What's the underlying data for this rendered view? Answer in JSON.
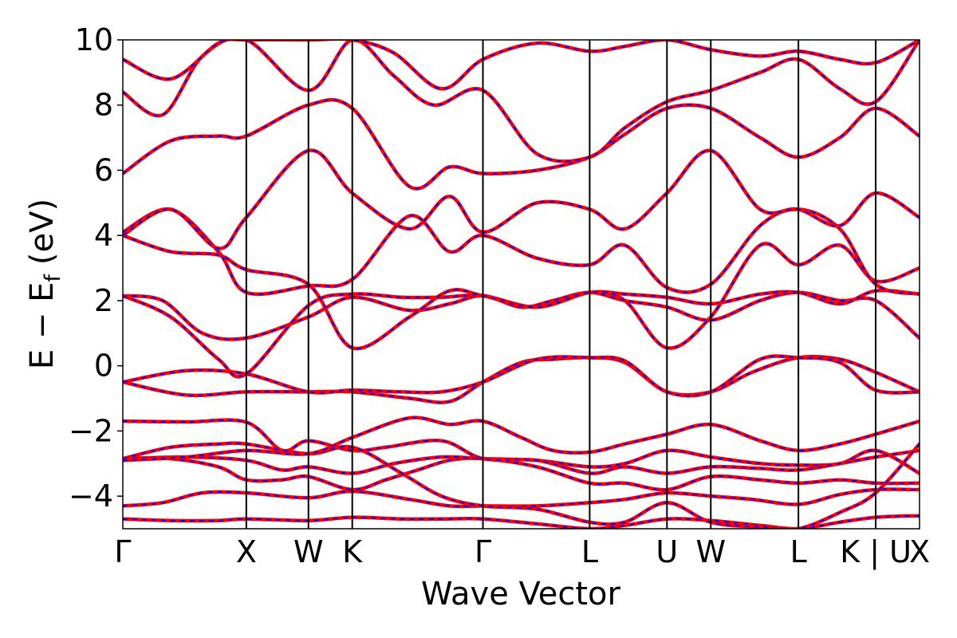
{
  "chart_data": {
    "type": "line",
    "title": "",
    "xlabel": "Wave Vector",
    "ylabel": "E − E",
    "ylabel_subscript": "f",
    "ylabel_unit": "(eV)",
    "ylim": [
      -5,
      10
    ],
    "yticks": [
      {
        "value": 10,
        "label": "10"
      },
      {
        "value": 8,
        "label": "8"
      },
      {
        "value": 6,
        "label": "6"
      },
      {
        "value": 4,
        "label": "4"
      },
      {
        "value": 2,
        "label": "2"
      },
      {
        "value": 0,
        "label": "0"
      },
      {
        "value": -2,
        "label": "−2"
      },
      {
        "value": -4,
        "label": "−4"
      }
    ],
    "xlim": [
      0,
      10
    ],
    "kpoints": [
      {
        "label": "Γ",
        "x": 0.0
      },
      {
        "label": "X",
        "x": 1.55
      },
      {
        "label": "W",
        "x": 2.33
      },
      {
        "label": "K",
        "x": 2.88
      },
      {
        "label": "Γ",
        "x": 4.52
      },
      {
        "label": "L",
        "x": 5.86
      },
      {
        "label": "U",
        "x": 6.83
      },
      {
        "label": "W",
        "x": 7.38
      },
      {
        "label": "L",
        "x": 8.48
      },
      {
        "label": "K | U",
        "x": 9.45
      },
      {
        "label": "X",
        "x": 10.0
      }
    ],
    "series_style": {
      "outer_color": "#ff0000",
      "inner_color": "#0000ff",
      "inner_dash": "dashed"
    },
    "series": [
      {
        "x": [
          0,
          0.6,
          1.2,
          1.55,
          2.33,
          2.88,
          3.5,
          4.0,
          4.52,
          5.2,
          5.86,
          6.3,
          6.83,
          7.38,
          8.0,
          8.48,
          9.0,
          9.45,
          10.0
        ],
        "y": [
          -4.7,
          -4.75,
          -4.75,
          -4.7,
          -4.75,
          -4.65,
          -4.7,
          -4.7,
          -4.7,
          -4.85,
          -5.0,
          -4.9,
          -4.7,
          -4.75,
          -4.9,
          -5.0,
          -4.8,
          -4.65,
          -4.6
        ]
      },
      {
        "x": [
          0,
          0.5,
          1.0,
          1.55,
          2.33,
          2.88,
          3.6,
          4.1,
          4.52,
          5.2,
          5.86,
          6.3,
          6.83,
          7.38,
          7.9,
          8.48,
          9.0,
          9.45,
          10.0
        ],
        "y": [
          -4.3,
          -4.2,
          -3.9,
          -3.9,
          -4.05,
          -3.85,
          -4.1,
          -4.3,
          -4.3,
          -4.3,
          -4.2,
          -4.1,
          -3.9,
          -4.0,
          -4.1,
          -4.25,
          -3.95,
          -3.8,
          -3.8
        ]
      },
      {
        "x": [
          0,
          0.6,
          1.2,
          1.55,
          2.0,
          2.33,
          2.88,
          3.3,
          3.7,
          4.1,
          4.52,
          5.2,
          5.86,
          6.3,
          6.83,
          7.38,
          8.0,
          8.48,
          9.0,
          9.45,
          10.0
        ],
        "y": [
          -2.85,
          -2.85,
          -3.1,
          -3.5,
          -3.5,
          -3.4,
          -3.8,
          -3.5,
          -3.2,
          -2.9,
          -2.85,
          -3.1,
          -3.6,
          -3.6,
          -3.8,
          -3.4,
          -3.5,
          -3.6,
          -3.5,
          -3.6,
          -3.6
        ]
      },
      {
        "x": [
          0,
          0.8,
          1.55,
          2.0,
          2.33,
          2.88,
          3.4,
          4.0,
          4.52,
          5.2,
          5.86,
          6.3,
          6.83,
          7.38,
          8.0,
          8.48,
          9.0,
          9.45,
          10.0
        ],
        "y": [
          -2.85,
          -2.8,
          -2.9,
          -3.2,
          -3.1,
          -3.3,
          -3.0,
          -2.8,
          -2.85,
          -2.9,
          -3.1,
          -3.0,
          -2.6,
          -2.8,
          -3.0,
          -3.05,
          -3.0,
          -2.6,
          -3.3
        ]
      },
      {
        "x": [
          0,
          0.8,
          1.55,
          2.0,
          2.33,
          2.88,
          3.3,
          4.0,
          4.52,
          5.2,
          5.86,
          6.3,
          6.83,
          7.38,
          8.0,
          8.48,
          9.0,
          9.45,
          10.0
        ],
        "y": [
          -1.7,
          -1.72,
          -1.73,
          -2.6,
          -2.3,
          -2.6,
          -2.5,
          -2.3,
          -2.85,
          -2.9,
          -3.3,
          -3.1,
          -3.3,
          -3.1,
          -3.15,
          -3.2,
          -3.0,
          -2.8,
          -2.6
        ]
      },
      {
        "x": [
          0,
          0.6,
          1.2,
          1.55,
          2.33,
          2.88,
          3.5,
          4.0,
          4.52,
          5.2,
          5.86,
          6.3,
          6.83,
          7.38,
          8.0,
          8.48,
          9.0,
          9.45,
          10.0
        ],
        "y": [
          -2.85,
          -2.5,
          -2.4,
          -2.4,
          -2.7,
          -2.5,
          -3.3,
          -4.0,
          -4.3,
          -4.4,
          -4.8,
          -4.8,
          -4.2,
          -4.8,
          -4.95,
          -5.0,
          -4.5,
          -3.9,
          -2.4
        ]
      },
      {
        "x": [
          0,
          0.8,
          1.55,
          2.33,
          2.88,
          3.6,
          4.1,
          4.52,
          5.0,
          5.4,
          5.86,
          6.3,
          6.83,
          7.38,
          8.0,
          8.48,
          9.0,
          9.45,
          10.0
        ],
        "y": [
          -2.9,
          -2.8,
          -2.6,
          -2.7,
          -2.2,
          -1.6,
          -1.8,
          -1.7,
          -2.2,
          -2.6,
          -2.65,
          -2.4,
          -2.1,
          -1.8,
          -2.3,
          -2.6,
          -2.4,
          -2.1,
          -1.7
        ]
      },
      {
        "x": [
          0,
          0.8,
          1.55,
          2.33,
          2.88,
          3.6,
          4.1,
          4.52,
          5.0,
          5.4,
          5.86,
          6.3,
          6.83,
          7.38,
          7.9,
          8.48,
          9.0,
          9.45,
          10.0
        ],
        "y": [
          -0.5,
          -0.9,
          -0.8,
          -0.8,
          -0.8,
          -1.0,
          -1.1,
          -0.5,
          0.1,
          0.2,
          0.25,
          0.1,
          -0.8,
          -0.8,
          -0.2,
          0.25,
          0.2,
          -0.2,
          -0.8
        ]
      },
      {
        "x": [
          0,
          0.8,
          1.55,
          2.33,
          2.88,
          3.5,
          4.0,
          4.52,
          5.2,
          5.86,
          6.3,
          6.83,
          7.38,
          8.0,
          8.48,
          9.0,
          9.45,
          10.0
        ],
        "y": [
          -0.5,
          -0.15,
          -0.25,
          -0.8,
          -0.75,
          -0.8,
          -0.8,
          -0.5,
          0.2,
          0.25,
          0.15,
          -0.8,
          -0.8,
          0.2,
          0.25,
          0.1,
          -0.75,
          -0.8
        ]
      },
      {
        "x": [
          0,
          0.5,
          1.0,
          1.55,
          2.33,
          2.88,
          3.6,
          4.1,
          4.52,
          5.0,
          5.4,
          5.86,
          6.3,
          6.83,
          7.38,
          8.0,
          8.48,
          9.0,
          9.45,
          10.0
        ],
        "y": [
          2.15,
          2.0,
          1.0,
          0.85,
          1.5,
          2.1,
          1.7,
          1.9,
          2.15,
          1.8,
          2.0,
          2.25,
          2.0,
          1.8,
          1.4,
          2.0,
          2.25,
          2.0,
          2.0,
          0.85
        ]
      },
      {
        "x": [
          0,
          0.6,
          1.2,
          1.55,
          2.33,
          2.88,
          3.5,
          4.0,
          4.52,
          5.2,
          5.86,
          6.3,
          6.83,
          7.38,
          8.0,
          8.48,
          9.0,
          9.45,
          10.0
        ],
        "y": [
          2.15,
          1.5,
          0.2,
          -0.25,
          1.85,
          2.2,
          2.1,
          2.1,
          2.15,
          1.8,
          2.25,
          2.2,
          2.1,
          1.9,
          2.2,
          2.25,
          1.9,
          2.3,
          2.2
        ]
      },
      {
        "x": [
          0,
          0.6,
          1.2,
          1.55,
          2.33,
          2.88,
          3.6,
          4.1,
          4.52,
          5.2,
          5.86,
          6.3,
          6.83,
          7.38,
          8.0,
          8.48,
          9.0,
          9.45,
          10.0
        ],
        "y": [
          4.0,
          3.5,
          3.4,
          2.95,
          2.5,
          0.55,
          1.5,
          2.3,
          2.15,
          1.8,
          2.25,
          2.0,
          0.55,
          1.5,
          3.7,
          3.1,
          3.7,
          2.6,
          3.0
        ]
      },
      {
        "x": [
          0,
          0.6,
          1.2,
          1.55,
          2.33,
          2.88,
          3.6,
          4.1,
          4.52,
          5.2,
          5.86,
          6.3,
          6.83,
          7.38,
          8.0,
          8.48,
          9.0,
          9.45,
          10.0
        ],
        "y": [
          4.1,
          4.8,
          3.5,
          2.25,
          2.45,
          2.65,
          4.6,
          3.5,
          4.0,
          3.3,
          3.1,
          3.7,
          2.4,
          2.5,
          4.3,
          4.8,
          4.2,
          2.5,
          2.2
        ]
      },
      {
        "x": [
          0,
          0.6,
          1.2,
          1.55,
          2.33,
          2.88,
          3.6,
          4.1,
          4.52,
          5.2,
          5.86,
          6.3,
          6.83,
          7.38,
          8.0,
          8.48,
          9.0,
          9.45,
          10.0
        ],
        "y": [
          4.0,
          4.8,
          3.6,
          4.55,
          6.6,
          5.3,
          4.2,
          5.2,
          4.1,
          5.0,
          4.8,
          4.2,
          5.3,
          6.6,
          4.8,
          4.8,
          4.3,
          5.3,
          4.55
        ]
      },
      {
        "x": [
          0,
          0.6,
          1.2,
          1.55,
          2.33,
          2.88,
          3.6,
          4.1,
          4.52,
          5.2,
          5.86,
          6.3,
          6.83,
          7.38,
          8.0,
          8.48,
          9.0,
          9.45,
          10.0
        ],
        "y": [
          5.9,
          6.9,
          7.05,
          7.05,
          8.0,
          7.9,
          5.5,
          6.1,
          5.9,
          6.0,
          6.4,
          7.1,
          7.9,
          7.9,
          7.0,
          6.4,
          7.0,
          7.9,
          7.05
        ]
      },
      {
        "x": [
          0,
          0.5,
          1.0,
          1.55,
          2.33,
          2.88,
          3.4,
          3.9,
          4.52,
          5.2,
          5.86,
          6.3,
          6.83,
          7.38,
          8.0,
          8.48,
          9.0,
          9.45,
          10.0
        ],
        "y": [
          8.4,
          7.7,
          9.5,
          10.0,
          8.45,
          10.0,
          8.9,
          8.0,
          8.45,
          6.5,
          6.4,
          7.3,
          8.1,
          8.45,
          9.0,
          9.4,
          8.5,
          8.1,
          10.0
        ]
      },
      {
        "x": [
          0,
          0.6,
          1.2,
          1.55,
          2.33,
          2.88,
          3.4,
          4.0,
          4.52,
          5.2,
          5.86,
          6.3,
          6.83,
          7.38,
          8.0,
          8.48,
          9.0,
          9.45,
          10.0
        ],
        "y": [
          9.4,
          8.8,
          9.9,
          10.0,
          10.0,
          10.0,
          9.6,
          8.5,
          9.4,
          9.9,
          9.65,
          9.8,
          10.0,
          9.7,
          9.5,
          9.65,
          9.4,
          9.3,
          10.0
        ]
      }
    ]
  }
}
